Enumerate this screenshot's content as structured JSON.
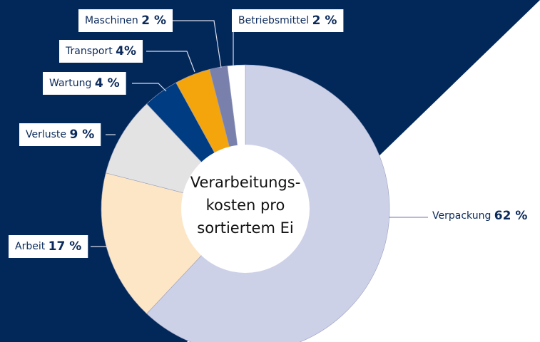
{
  "chart_data": {
    "type": "donut",
    "center_label": [
      "Verarbeitungs-",
      "kosten pro",
      "sortiertem Ei"
    ],
    "categories": [
      "Verpackung",
      "Arbeit",
      "Verluste",
      "Wartung",
      "Transport",
      "Maschinen",
      "Betriebsmittel"
    ],
    "values": [
      62,
      17,
      9,
      4,
      4,
      2,
      2
    ],
    "value_labels": [
      "62 %",
      "17 %",
      "9 %",
      "4 %",
      "4%",
      "2 %",
      "2 %"
    ],
    "colors": [
      "#cdd1e8",
      "#fde6c6",
      "#e3e3e3",
      "#003c82",
      "#f5a50c",
      "#7880ab",
      "#ffffff"
    ]
  }
}
